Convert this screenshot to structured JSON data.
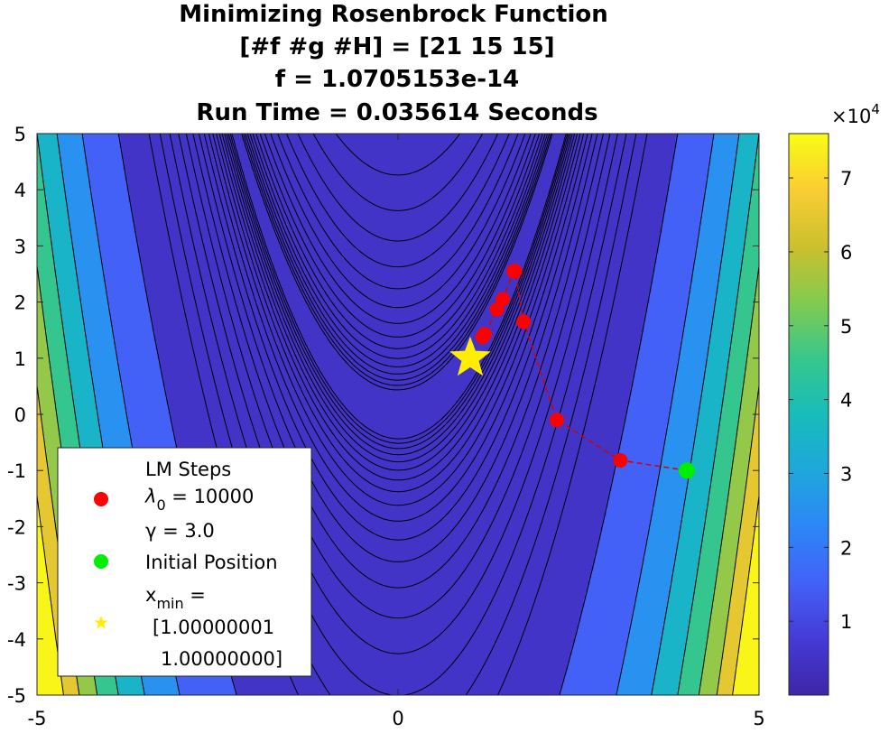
{
  "title": {
    "line1": "Minimizing Rosenbrock Function",
    "line2": "[#f #g #H] = [21 15 15]",
    "line3": "f = 1.0705153e-14",
    "line4": "Run Time = 0.035614 Seconds"
  },
  "colorbar": {
    "multiplier_base": "×10",
    "multiplier_exp": "4",
    "ticks": [
      "1",
      "2",
      "3",
      "4",
      "5",
      "6",
      "7"
    ],
    "colormap": "parula",
    "range": [
      0,
      7.6
    ]
  },
  "legend": {
    "items": [
      {
        "label": "LM Steps",
        "marker": "red-dot"
      },
      {
        "label": "Initial Position",
        "marker": "green-dot"
      },
      {
        "label": "x_min",
        "marker": "yellow-star"
      }
    ],
    "lambda_base": "λ",
    "lambda_sub": "0",
    "lambda_value": " = 10000",
    "gamma_text": "γ = 3.0",
    "lm_steps": "LM Steps",
    "initial_position": "Initial Position",
    "xmin_base": "x",
    "xmin_sub": "min",
    "xmin_eq": " =",
    "xmin_v1": "[1.00000001",
    "xmin_v2": "1.00000000]",
    "placement": "lower-left"
  },
  "chart_data": {
    "type": "contour",
    "function": "(1-x)^2 + 100*(y-x^2)^2",
    "xlim": [
      -5,
      5
    ],
    "ylim": [
      -5,
      5
    ],
    "x_ticks": [
      "-5",
      "0",
      "5"
    ],
    "y_ticks": [
      "5",
      "4",
      "3",
      "2",
      "1",
      "0",
      "-1",
      "-2",
      "-3",
      "-4",
      "-5"
    ],
    "colors": {
      "lm_steps": "#ff0000",
      "path": "#d40000",
      "initial": "#00ee00",
      "minimum": "#ffee00"
    },
    "series": [
      {
        "name": "LM Steps",
        "points": [
          {
            "x": 3.08,
            "y": -0.82
          },
          {
            "x": 2.2,
            "y": -0.1
          },
          {
            "x": 1.74,
            "y": 1.65
          },
          {
            "x": 1.62,
            "y": 2.55
          },
          {
            "x": 1.6,
            "y": 2.55
          },
          {
            "x": 1.45,
            "y": 2.05
          },
          {
            "x": 1.37,
            "y": 1.87
          },
          {
            "x": 1.2,
            "y": 1.43
          },
          {
            "x": 1.17,
            "y": 1.38
          }
        ]
      },
      {
        "name": "Initial Position",
        "points": [
          {
            "x": 4.0,
            "y": -1.0
          }
        ]
      },
      {
        "name": "x_min",
        "points": [
          {
            "x": 1.0,
            "y": 1.0
          }
        ]
      }
    ]
  }
}
